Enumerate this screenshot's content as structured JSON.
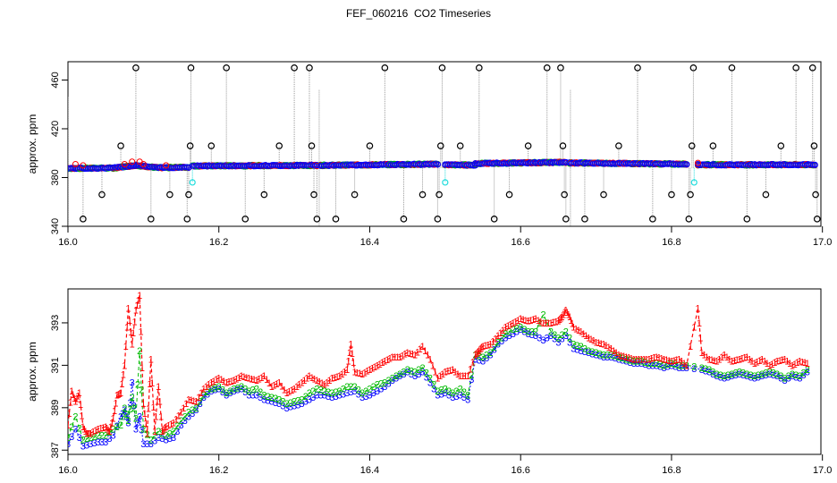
{
  "title": "FEF_060216  CO2 Timeseries",
  "colors": {
    "series1": "#ff0000",
    "series2": "#00bb00",
    "series3": "#0000ff",
    "black": "#000000",
    "cyan": "#22dddd",
    "gray": "#999999"
  },
  "chart_data": [
    {
      "type": "scatter",
      "title": "",
      "ylabel": "approx. ppm",
      "xlabel": "",
      "xlim": [
        16.0,
        17.0
      ],
      "ylim": [
        340,
        475
      ],
      "x_ticks": [
        16.0,
        16.2,
        16.4,
        16.6,
        16.8,
        17.0
      ],
      "x_tick_labels": [
        "16.0",
        "16.2",
        "16.4",
        "16.6",
        "16.8",
        "17.0"
      ],
      "y_ticks": [
        340,
        380,
        420,
        460
      ],
      "y_tick_labels": [
        "340",
        "380",
        "420",
        "460"
      ],
      "grid": false,
      "baseline_segments": [
        {
          "x0": 16.0,
          "x1": 16.06,
          "y0": 387.5,
          "y1": 387.8
        },
        {
          "x0": 16.06,
          "x1": 16.09,
          "y0": 387.8,
          "y1": 390.0
        },
        {
          "x0": 16.09,
          "x1": 16.12,
          "y0": 390.0,
          "y1": 388.0
        },
        {
          "x0": 16.12,
          "x1": 16.16,
          "y0": 388.0,
          "y1": 388.5
        },
        {
          "x0": 16.165,
          "x1": 16.33,
          "y0": 389.5,
          "y1": 390.0
        },
        {
          "x0": 16.335,
          "x1": 16.49,
          "y0": 390.0,
          "y1": 391.0
        },
        {
          "x0": 16.5,
          "x1": 16.54,
          "y0": 390.5,
          "y1": 390.2
        },
        {
          "x0": 16.54,
          "x1": 16.66,
          "y0": 391.5,
          "y1": 392.5
        },
        {
          "x0": 16.665,
          "x1": 16.82,
          "y0": 392.0,
          "y1": 391.0
        },
        {
          "x0": 16.835,
          "x1": 16.99,
          "y0": 390.5,
          "y1": 390.5
        }
      ],
      "black_points": [
        {
          "x": 16.02,
          "y": 346
        },
        {
          "x": 16.045,
          "y": 366
        },
        {
          "x": 16.07,
          "y": 406
        },
        {
          "x": 16.09,
          "y": 470
        },
        {
          "x": 16.11,
          "y": 346
        },
        {
          "x": 16.135,
          "y": 366
        },
        {
          "x": 16.158,
          "y": 346
        },
        {
          "x": 16.16,
          "y": 366
        },
        {
          "x": 16.162,
          "y": 406
        },
        {
          "x": 16.163,
          "y": 470
        },
        {
          "x": 16.19,
          "y": 406
        },
        {
          "x": 16.21,
          "y": 470
        },
        {
          "x": 16.235,
          "y": 346
        },
        {
          "x": 16.26,
          "y": 366
        },
        {
          "x": 16.28,
          "y": 406
        },
        {
          "x": 16.3,
          "y": 470
        },
        {
          "x": 16.32,
          "y": 470
        },
        {
          "x": 16.323,
          "y": 406
        },
        {
          "x": 16.326,
          "y": 366
        },
        {
          "x": 16.33,
          "y": 346
        },
        {
          "x": 16.355,
          "y": 346
        },
        {
          "x": 16.38,
          "y": 366
        },
        {
          "x": 16.4,
          "y": 406
        },
        {
          "x": 16.42,
          "y": 470
        },
        {
          "x": 16.445,
          "y": 346
        },
        {
          "x": 16.47,
          "y": 366
        },
        {
          "x": 16.49,
          "y": 346
        },
        {
          "x": 16.492,
          "y": 366
        },
        {
          "x": 16.494,
          "y": 406
        },
        {
          "x": 16.496,
          "y": 470
        },
        {
          "x": 16.52,
          "y": 406
        },
        {
          "x": 16.545,
          "y": 470
        },
        {
          "x": 16.565,
          "y": 346
        },
        {
          "x": 16.585,
          "y": 366
        },
        {
          "x": 16.61,
          "y": 406
        },
        {
          "x": 16.635,
          "y": 470
        },
        {
          "x": 16.653,
          "y": 470
        },
        {
          "x": 16.656,
          "y": 406
        },
        {
          "x": 16.658,
          "y": 366
        },
        {
          "x": 16.66,
          "y": 346
        },
        {
          "x": 16.685,
          "y": 346
        },
        {
          "x": 16.71,
          "y": 366
        },
        {
          "x": 16.73,
          "y": 406
        },
        {
          "x": 16.755,
          "y": 470
        },
        {
          "x": 16.775,
          "y": 346
        },
        {
          "x": 16.8,
          "y": 366
        },
        {
          "x": 16.823,
          "y": 346
        },
        {
          "x": 16.825,
          "y": 366
        },
        {
          "x": 16.827,
          "y": 406
        },
        {
          "x": 16.829,
          "y": 470
        },
        {
          "x": 16.855,
          "y": 406
        },
        {
          "x": 16.88,
          "y": 470
        },
        {
          "x": 16.9,
          "y": 346
        },
        {
          "x": 16.925,
          "y": 366
        },
        {
          "x": 16.945,
          "y": 406
        },
        {
          "x": 16.965,
          "y": 470
        },
        {
          "x": 16.987,
          "y": 470
        },
        {
          "x": 16.989,
          "y": 406
        },
        {
          "x": 16.991,
          "y": 366
        },
        {
          "x": 16.993,
          "y": 346
        }
      ],
      "cyan_points": [
        {
          "x": 16.165,
          "y": 376
        },
        {
          "x": 16.5,
          "y": 376
        },
        {
          "x": 16.83,
          "y": 376
        }
      ],
      "red_points": [
        {
          "x": 16.01,
          "y": 391
        },
        {
          "x": 16.02,
          "y": 390
        },
        {
          "x": 16.075,
          "y": 391
        },
        {
          "x": 16.085,
          "y": 393
        },
        {
          "x": 16.095,
          "y": 393
        },
        {
          "x": 16.1,
          "y": 391
        },
        {
          "x": 16.13,
          "y": 390
        },
        {
          "x": 16.835,
          "y": 392
        }
      ]
    },
    {
      "type": "line",
      "title": "",
      "ylabel": "approx. ppm",
      "xlabel": "",
      "xlim": [
        16.0,
        17.0
      ],
      "ylim": [
        386.8,
        394.6
      ],
      "x_ticks": [
        16.0,
        16.2,
        16.4,
        16.6,
        16.8,
        17.0
      ],
      "x_tick_labels": [
        "16.0",
        "16.2",
        "16.4",
        "16.6",
        "16.8",
        "17.0"
      ],
      "y_ticks": [
        387,
        389,
        391,
        393
      ],
      "y_tick_labels": [
        "387",
        "389",
        "391",
        "393"
      ],
      "grid": false,
      "series": [
        {
          "marker": "1",
          "x": [
            16.0,
            16.005,
            16.01,
            16.015,
            16.02,
            16.025,
            16.03,
            16.04,
            16.05,
            16.055,
            16.06,
            16.065,
            16.07,
            16.075,
            16.08,
            16.085,
            16.09,
            16.095,
            16.1,
            16.105,
            16.11,
            16.115,
            16.12,
            16.125,
            16.13,
            16.14,
            16.15,
            16.16,
            16.17,
            16.18,
            16.19,
            16.2,
            16.21,
            16.22,
            16.23,
            16.24,
            16.25,
            16.26,
            16.27,
            16.28,
            16.29,
            16.3,
            16.31,
            16.32,
            16.33,
            16.34,
            16.35,
            16.36,
            16.37,
            16.375,
            16.38,
            16.39,
            16.4,
            16.41,
            16.42,
            16.43,
            16.44,
            16.45,
            16.46,
            16.47,
            16.48,
            16.49,
            16.5,
            16.51,
            16.52,
            16.53,
            16.54,
            16.545,
            16.55,
            16.56,
            16.57,
            16.58,
            16.59,
            16.6,
            16.61,
            16.62,
            16.63,
            16.64,
            16.65,
            16.655,
            16.66,
            16.665,
            16.67,
            16.68,
            16.69,
            16.7,
            16.71,
            16.72,
            16.73,
            16.74,
            16.75,
            16.76,
            16.77,
            16.78,
            16.79,
            16.8,
            16.81,
            16.82,
            16.835,
            16.84,
            16.85,
            16.86,
            16.87,
            16.88,
            16.89,
            16.9,
            16.91,
            16.92,
            16.93,
            16.94,
            16.95,
            16.96,
            16.97,
            16.98
          ],
          "y": [
            388.2,
            389.8,
            389.3,
            389.7,
            388.1,
            387.8,
            387.8,
            388.0,
            388.1,
            387.9,
            388.5,
            389.6,
            389.7,
            391.0,
            393.7,
            392.0,
            393.6,
            394.3,
            389.2,
            387.8,
            391.3,
            387.9,
            390.0,
            387.9,
            388.1,
            388.3,
            388.8,
            389.4,
            389.3,
            389.9,
            390.2,
            390.4,
            390.2,
            390.3,
            390.5,
            390.4,
            390.3,
            390.5,
            390.0,
            390.2,
            389.7,
            389.9,
            390.2,
            390.5,
            390.3,
            390.1,
            390.4,
            390.5,
            390.8,
            392.0,
            390.7,
            390.6,
            390.8,
            391.0,
            391.2,
            391.4,
            391.4,
            391.6,
            391.5,
            391.9,
            391.3,
            390.4,
            390.7,
            390.8,
            390.5,
            390.5,
            391.5,
            391.7,
            391.9,
            392.0,
            392.4,
            392.8,
            393.0,
            393.2,
            393.1,
            393.2,
            393.0,
            393.0,
            393.1,
            393.3,
            393.6,
            393.3,
            392.8,
            392.6,
            392.3,
            392.1,
            392.0,
            391.8,
            391.5,
            391.4,
            391.3,
            391.3,
            391.3,
            391.4,
            391.3,
            391.2,
            391.3,
            391.0,
            393.7,
            391.6,
            391.3,
            391.2,
            391.5,
            391.2,
            391.3,
            391.4,
            391.1,
            391.3,
            391.0,
            391.2,
            391.3,
            391.0,
            391.2,
            391.1
          ]
        },
        {
          "marker": "2",
          "x": [
            16.0,
            16.01,
            16.02,
            16.03,
            16.04,
            16.05,
            16.06,
            16.07,
            16.075,
            16.08,
            16.085,
            16.09,
            16.095,
            16.1,
            16.11,
            16.12,
            16.13,
            16.14,
            16.15,
            16.16,
            16.17,
            16.18,
            16.19,
            16.2,
            16.21,
            16.22,
            16.23,
            16.24,
            16.25,
            16.26,
            16.27,
            16.28,
            16.29,
            16.3,
            16.31,
            16.32,
            16.33,
            16.34,
            16.35,
            16.36,
            16.37,
            16.38,
            16.39,
            16.4,
            16.41,
            16.42,
            16.43,
            16.44,
            16.45,
            16.46,
            16.47,
            16.48,
            16.49,
            16.5,
            16.51,
            16.52,
            16.53,
            16.54,
            16.55,
            16.56,
            16.57,
            16.58,
            16.59,
            16.6,
            16.61,
            16.62,
            16.63,
            16.64,
            16.65,
            16.66,
            16.67,
            16.68,
            16.69,
            16.7,
            16.71,
            16.72,
            16.73,
            16.74,
            16.75,
            16.76,
            16.77,
            16.78,
            16.79,
            16.8,
            16.81,
            16.82,
            16.84,
            16.85,
            16.86,
            16.87,
            16.88,
            16.89,
            16.9,
            16.91,
            16.92,
            16.93,
            16.94,
            16.95,
            16.96,
            16.97,
            16.98
          ],
          "y": [
            387.6,
            388.6,
            387.5,
            387.6,
            387.7,
            387.7,
            388.0,
            388.2,
            389.0,
            388.4,
            389.5,
            388.5,
            391.7,
            388.0,
            387.5,
            387.9,
            387.7,
            387.9,
            388.4,
            388.8,
            389.0,
            389.6,
            389.9,
            390.0,
            389.7,
            389.9,
            390.0,
            389.8,
            389.9,
            389.6,
            389.5,
            389.4,
            389.2,
            389.3,
            389.4,
            389.7,
            389.9,
            389.8,
            389.7,
            389.8,
            390.0,
            390.0,
            389.7,
            389.9,
            390.1,
            390.2,
            390.4,
            390.6,
            390.8,
            390.7,
            390.9,
            390.4,
            389.8,
            389.9,
            389.7,
            389.9,
            389.6,
            391.5,
            391.4,
            391.6,
            392.1,
            392.5,
            392.7,
            392.8,
            392.6,
            392.6,
            393.4,
            392.6,
            392.3,
            392.6,
            392.0,
            391.9,
            391.7,
            391.6,
            391.5,
            391.5,
            391.4,
            391.3,
            391.2,
            391.2,
            391.1,
            391.1,
            391.0,
            391.1,
            391.0,
            391.0,
            390.9,
            390.8,
            390.6,
            390.5,
            390.6,
            390.7,
            390.6,
            390.5,
            390.6,
            390.7,
            390.6,
            390.4,
            390.6,
            390.5,
            390.8
          ]
        },
        {
          "marker": "3",
          "x": [
            16.0,
            16.01,
            16.02,
            16.03,
            16.04,
            16.05,
            16.06,
            16.07,
            16.075,
            16.08,
            16.085,
            16.09,
            16.095,
            16.1,
            16.11,
            16.12,
            16.13,
            16.14,
            16.15,
            16.16,
            16.17,
            16.18,
            16.19,
            16.2,
            16.21,
            16.22,
            16.23,
            16.24,
            16.25,
            16.26,
            16.27,
            16.28,
            16.29,
            16.3,
            16.31,
            16.32,
            16.33,
            16.34,
            16.35,
            16.36,
            16.37,
            16.38,
            16.39,
            16.4,
            16.41,
            16.42,
            16.43,
            16.44,
            16.45,
            16.46,
            16.47,
            16.48,
            16.49,
            16.5,
            16.51,
            16.52,
            16.53,
            16.54,
            16.55,
            16.56,
            16.57,
            16.58,
            16.59,
            16.6,
            16.61,
            16.62,
            16.63,
            16.64,
            16.65,
            16.66,
            16.67,
            16.68,
            16.69,
            16.7,
            16.71,
            16.72,
            16.73,
            16.74,
            16.75,
            16.76,
            16.77,
            16.78,
            16.79,
            16.8,
            16.81,
            16.82,
            16.84,
            16.85,
            16.86,
            16.87,
            16.88,
            16.89,
            16.9,
            16.91,
            16.92,
            16.93,
            16.94,
            16.95,
            16.96,
            16.97,
            16.98
          ],
          "y": [
            387.3,
            388.0,
            387.2,
            387.3,
            387.4,
            387.4,
            387.7,
            388.6,
            388.9,
            388.3,
            390.2,
            388.0,
            388.6,
            387.3,
            387.3,
            387.6,
            387.5,
            387.6,
            388.2,
            388.6,
            388.9,
            389.5,
            389.8,
            389.9,
            389.6,
            389.8,
            389.9,
            389.6,
            389.6,
            389.4,
            389.3,
            389.2,
            389.0,
            389.1,
            389.2,
            389.4,
            389.6,
            389.6,
            389.5,
            389.6,
            389.7,
            389.8,
            389.5,
            389.6,
            389.8,
            390.0,
            390.3,
            390.5,
            390.7,
            390.5,
            390.7,
            390.2,
            389.6,
            389.7,
            389.5,
            389.6,
            389.4,
            391.3,
            391.2,
            391.5,
            392.0,
            392.3,
            392.5,
            392.7,
            392.5,
            392.4,
            392.2,
            392.4,
            392.1,
            392.4,
            391.8,
            391.7,
            391.6,
            391.5,
            391.4,
            391.4,
            391.3,
            391.2,
            391.1,
            391.1,
            391.0,
            391.0,
            390.9,
            391.0,
            390.9,
            390.9,
            390.8,
            390.7,
            390.5,
            390.4,
            390.5,
            390.6,
            390.5,
            390.4,
            390.5,
            390.6,
            390.5,
            390.3,
            390.5,
            390.4,
            390.7
          ]
        }
      ]
    }
  ]
}
